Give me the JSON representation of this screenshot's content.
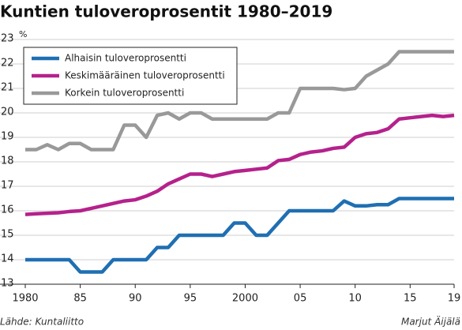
{
  "chart_data": {
    "type": "line",
    "title": "Kuntien tuloveroprosentit 1980–2019",
    "y_unit": "%",
    "source": "Lähde: Kuntaliitto",
    "author": "Marjut Äijälä",
    "x": [
      1980,
      1981,
      1982,
      1983,
      1984,
      1985,
      1986,
      1987,
      1988,
      1989,
      1990,
      1991,
      1992,
      1993,
      1994,
      1995,
      1996,
      1997,
      1998,
      1999,
      2000,
      2001,
      2002,
      2003,
      2004,
      2005,
      2006,
      2007,
      2008,
      2009,
      2010,
      2011,
      2012,
      2013,
      2014,
      2015,
      2016,
      2017,
      2018,
      2019
    ],
    "xlim": [
      1980,
      2019
    ],
    "xticks": [
      1980,
      {
        "value": 1985,
        "label": "85"
      },
      {
        "value": 1990,
        "label": "90"
      },
      {
        "value": 1995,
        "label": "95"
      },
      2000,
      {
        "value": 2005,
        "label": "05"
      },
      {
        "value": 2010,
        "label": "10"
      },
      {
        "value": 2015,
        "label": "15"
      },
      {
        "value": 2019,
        "label": "19"
      }
    ],
    "ylim": [
      13,
      23
    ],
    "yticks": [
      13,
      14,
      15,
      16,
      17,
      18,
      19,
      20,
      21,
      22,
      23
    ],
    "grid": true,
    "legend": "upper left",
    "series": [
      {
        "name": "Alhaisin tuloveroprosentti",
        "color": "#1f6fb2",
        "values": [
          14,
          14,
          14,
          14,
          14,
          13.5,
          13.5,
          13.5,
          14,
          14,
          14,
          14,
          14.5,
          14.5,
          15,
          15,
          15,
          15,
          15,
          15.5,
          15.5,
          15,
          15,
          15.5,
          16,
          16,
          16,
          16,
          16,
          16.4,
          16.2,
          16.2,
          16.25,
          16.25,
          16.5,
          16.5,
          16.5,
          16.5,
          16.5,
          16.5
        ]
      },
      {
        "name": "Keskimääräinen tuloveroprosentti",
        "color": "#b5218c",
        "values": [
          15.85,
          15.88,
          15.9,
          15.92,
          15.97,
          16,
          16.1,
          16.2,
          16.3,
          16.4,
          16.45,
          16.6,
          16.8,
          17.1,
          17.3,
          17.5,
          17.5,
          17.4,
          17.5,
          17.6,
          17.65,
          17.7,
          17.75,
          18.05,
          18.1,
          18.3,
          18.4,
          18.45,
          18.55,
          18.6,
          19,
          19.15,
          19.2,
          19.35,
          19.75,
          19.8,
          19.85,
          19.9,
          19.85,
          19.9
        ]
      },
      {
        "name": "Korkein tuloveroprosentti",
        "color": "#999999",
        "values": [
          18.5,
          18.5,
          18.7,
          18.5,
          18.75,
          18.75,
          18.5,
          18.5,
          18.5,
          19.5,
          19.5,
          19,
          19.9,
          20,
          19.75,
          20,
          20,
          19.75,
          19.75,
          19.75,
          19.75,
          19.75,
          19.75,
          20,
          20,
          21,
          21,
          21,
          21,
          20.95,
          21,
          21.5,
          21.75,
          22,
          22.5,
          22.5,
          22.5,
          22.5,
          22.5,
          22.5
        ]
      }
    ]
  }
}
